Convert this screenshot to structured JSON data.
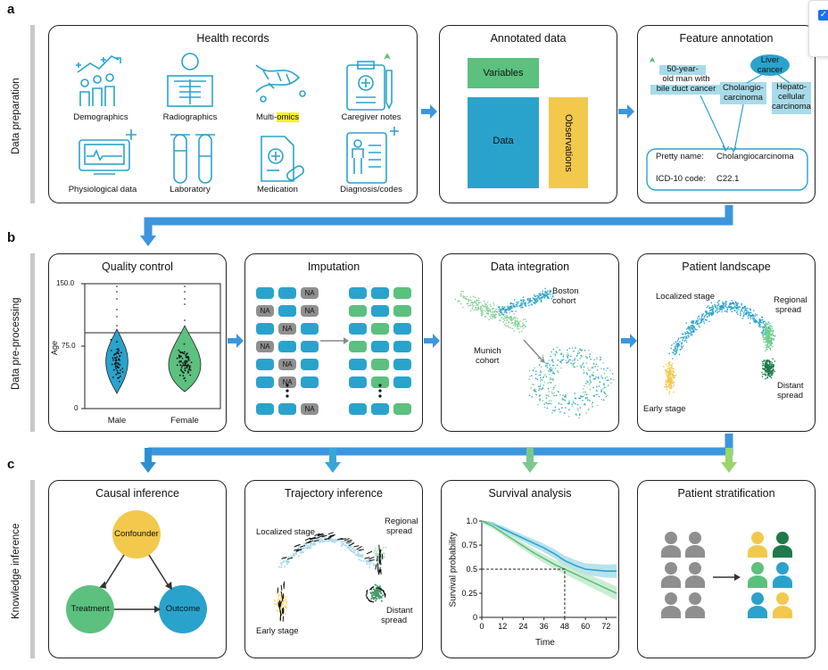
{
  "sections": {
    "a": {
      "letter": "a",
      "label": "Data preparation"
    },
    "b": {
      "letter": "b",
      "label": "Data pre-processing"
    },
    "c": {
      "letter": "c",
      "label": "Knowledge inference"
    }
  },
  "health_records": {
    "title": "Health records",
    "items": [
      "Demographics",
      "Radiographics",
      "Multi-",
      "omics",
      "Caregiver notes",
      "Physiological data",
      "Laboratory",
      "Medication",
      "Diagnosis/codes"
    ]
  },
  "annotated_data": {
    "title": "Annotated data",
    "variables": "Variables",
    "data": "Data",
    "observations": "Observations"
  },
  "feature_annotation": {
    "title": "Feature annotation",
    "note_line1": "50-year-",
    "note_line2": "old man with",
    "note_line3": "bile duct cancer",
    "liver": "Liver cancer",
    "cholangio1": "Cholangio-",
    "cholangio2": "carcinoma",
    "hepato1": "Hepato-",
    "hepato2": "cellular",
    "hepato3": "carcinoma",
    "pretty_label": "Pretty name:",
    "pretty_value": "Cholangiocarcinoma",
    "icd_label": "ICD-10 code:",
    "icd_value": "C22.1"
  },
  "quality_control": {
    "title": "Quality control",
    "ylabel": "Age",
    "yticks": [
      "150.0",
      "75.0",
      "0"
    ],
    "groups": [
      "Male",
      "Female"
    ]
  },
  "imputation": {
    "title": "Imputation",
    "na": "NA"
  },
  "data_integration": {
    "title": "Data integration",
    "boston1": "Boston",
    "boston2": "cohort",
    "munich1": "Munich",
    "munich2": "cohort"
  },
  "patient_landscape": {
    "title": "Patient landscape",
    "localized": "Localized stage",
    "regional1": "Regional",
    "regional2": "spread",
    "distant1": "Distant",
    "distant2": "spread",
    "early": "Early stage"
  },
  "causal_inference": {
    "title": "Causal inference",
    "confounder": "Confounder",
    "treatment": "Treatment",
    "outcome": "Outcome"
  },
  "trajectory_inference": {
    "title": "Trajectory inference",
    "localized": "Localized stage",
    "regional1": "Regional",
    "regional2": "spread",
    "distant1": "Distant",
    "distant2": "spread",
    "early": "Early stage"
  },
  "survival_analysis": {
    "title": "Survival analysis",
    "ylabel": "Survival probability",
    "xlabel": "Time",
    "yticks": [
      "1.0",
      "0.75",
      "0.5",
      "0.25",
      "0"
    ],
    "xticks": [
      "0",
      "12",
      "24",
      "36",
      "48",
      "60",
      "72"
    ]
  },
  "patient_stratification": {
    "title": "Patient stratification"
  },
  "colors": {
    "blue": "#2aa3cc",
    "green": "#5cc07f",
    "yellow": "#f2c94c",
    "darkgreen": "#1e7a4a",
    "arrow": "#3c96de",
    "gray": "#8f8f8f"
  },
  "chart_data": {
    "type": "line",
    "xlabel": "Time",
    "ylabel": "Survival probability",
    "xlim": [
      0,
      78
    ],
    "ylim": [
      0,
      1.0
    ],
    "series": [
      {
        "x": [
          0,
          6,
          12,
          18,
          24,
          30,
          36,
          42,
          48,
          54,
          60,
          66,
          72,
          78
        ],
        "values": [
          1.0,
          0.97,
          0.92,
          0.87,
          0.82,
          0.77,
          0.72,
          0.66,
          0.59,
          0.54,
          0.5,
          0.49,
          0.48,
          0.48
        ]
      },
      {
        "x": [
          0,
          6,
          12,
          18,
          24,
          30,
          36,
          42,
          48,
          54,
          60,
          66,
          72,
          78
        ],
        "values": [
          1.0,
          0.95,
          0.88,
          0.81,
          0.74,
          0.67,
          0.61,
          0.55,
          0.5,
          0.45,
          0.4,
          0.35,
          0.3,
          0.25
        ]
      }
    ]
  }
}
